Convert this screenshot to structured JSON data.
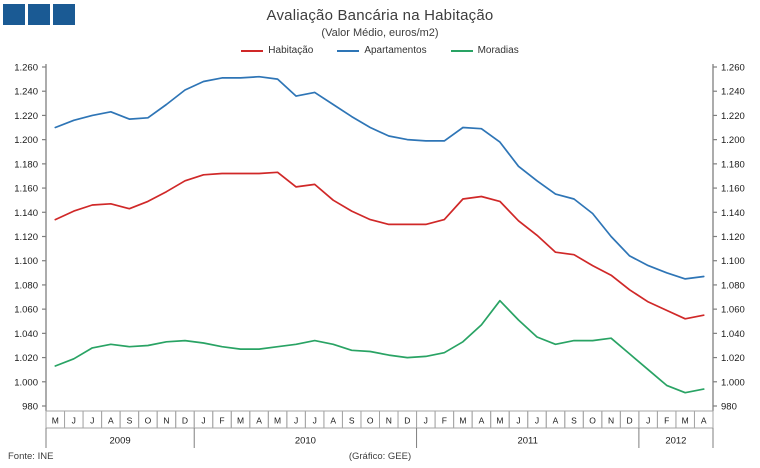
{
  "header": {
    "logo_color": "#1a5a94",
    "title": "Avaliação Bancária na Habitação",
    "subtitle": "(Valor Médio, euros/m2)"
  },
  "chart_data": {
    "type": "line",
    "title": "Avaliação Bancária na Habitação",
    "subtitle": "(Valor Médio, euros/m2)",
    "grid": false,
    "legend_position": "top",
    "axis_color": "#7f7f7f",
    "cell_border_color": "#a6a6a6",
    "ylim": [
      980,
      1260
    ],
    "y_ticks": [
      1260,
      1240,
      1220,
      1200,
      1180,
      1160,
      1140,
      1120,
      1100,
      1080,
      1060,
      1040,
      1020,
      1000,
      980
    ],
    "y_tick_labels": [
      "1.260",
      "1.240",
      "1.220",
      "1.200",
      "1.180",
      "1.160",
      "1.140",
      "1.120",
      "1.100",
      "1.080",
      "1.060",
      "1.040",
      "1.020",
      "1.000",
      "980"
    ],
    "categories": [
      "M",
      "J",
      "J",
      "A",
      "S",
      "O",
      "N",
      "D",
      "J",
      "F",
      "M",
      "A",
      "M",
      "J",
      "J",
      "A",
      "S",
      "O",
      "N",
      "D",
      "J",
      "F",
      "M",
      "A",
      "M",
      "J",
      "J",
      "A",
      "S",
      "O",
      "N",
      "D",
      "J",
      "F",
      "M",
      "A"
    ],
    "year_groups": [
      {
        "label": "2009",
        "months": 8
      },
      {
        "label": "2010",
        "months": 12
      },
      {
        "label": "2011",
        "months": 12
      },
      {
        "label": "2012",
        "months": 4
      }
    ],
    "series": [
      {
        "id": "habitacao",
        "name": "Habitação",
        "color": "#d02828",
        "values": [
          1134,
          1141,
          1146,
          1147,
          1143,
          1149,
          1157,
          1166,
          1171,
          1172,
          1172,
          1172,
          1173,
          1161,
          1163,
          1150,
          1141,
          1134,
          1130,
          1130,
          1130,
          1134,
          1151,
          1153,
          1149,
          1133,
          1121,
          1107,
          1105,
          1096,
          1088,
          1076,
          1066,
          1059,
          1052,
          1055
        ]
      },
      {
        "id": "apartamentos",
        "name": "Apartamentos",
        "color": "#2e75b6",
        "values": [
          1210,
          1216,
          1220,
          1223,
          1217,
          1218,
          1229,
          1241,
          1248,
          1251,
          1251,
          1252,
          1250,
          1236,
          1239,
          1229,
          1219,
          1210,
          1203,
          1200,
          1199,
          1199,
          1210,
          1209,
          1198,
          1178,
          1166,
          1155,
          1151,
          1139,
          1120,
          1104,
          1096,
          1090,
          1085,
          1087
        ]
      },
      {
        "id": "moradias",
        "name": "Moradias",
        "color": "#29a364",
        "values": [
          1013,
          1019,
          1028,
          1031,
          1029,
          1030,
          1033,
          1034,
          1032,
          1029,
          1027,
          1027,
          1029,
          1031,
          1034,
          1031,
          1026,
          1025,
          1022,
          1020,
          1021,
          1024,
          1033,
          1047,
          1067,
          1051,
          1037,
          1031,
          1034,
          1034,
          1036,
          1023,
          1010,
          997,
          991,
          994
        ]
      }
    ]
  },
  "footer": {
    "source": "Fonte:  INE",
    "credit": "(Gráfico:  GEE)"
  }
}
